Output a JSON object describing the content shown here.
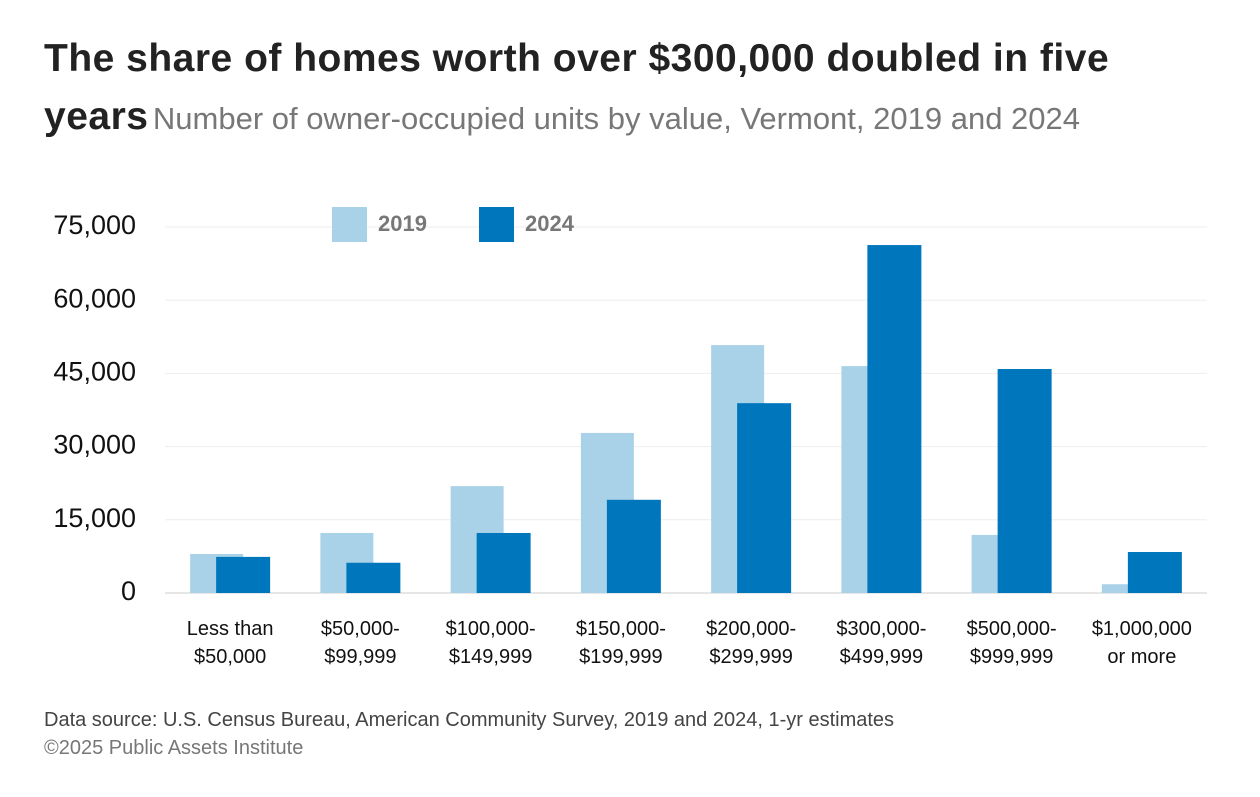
{
  "chart_data": {
    "type": "bar",
    "title": "The share of homes worth over $300,000 doubled in five years",
    "subtitle": "Number of owner-occupied units by value, Vermont, 2019 and 2024",
    "categories": [
      "Less than\n$50,000",
      "$50,000-\n$99,999",
      "$100,000-\n$149,999",
      "$150,000-\n$199,999",
      "$200,000-\n$299,999",
      "$300,000-\n$499,999",
      "$500,000-\n$999,999",
      "$1,000,000\nor more"
    ],
    "series": [
      {
        "name": "2019",
        "color": "#a9d2e8",
        "values": [
          8000,
          12300,
          21900,
          32800,
          50800,
          46500,
          11900,
          1800
        ]
      },
      {
        "name": "2024",
        "color": "#0077bd",
        "values": [
          7400,
          6200,
          12300,
          19100,
          38900,
          71300,
          45900,
          8400
        ]
      }
    ],
    "ylim": [
      0,
      75000
    ],
    "yticks": [
      {
        "value": 0,
        "label": "0"
      },
      {
        "value": 15000,
        "label": "15,000"
      },
      {
        "value": 30000,
        "label": "30,000"
      },
      {
        "value": 45000,
        "label": "45,000"
      },
      {
        "value": 60000,
        "label": "60,000"
      },
      {
        "value": 75000,
        "label": "75,000"
      }
    ],
    "grid": true,
    "source": "Data source: U.S. Census Bureau, American Community Survey, 2019 and 2024, 1-yr estimates",
    "copyright": "©2025 Public Assets Institute"
  }
}
